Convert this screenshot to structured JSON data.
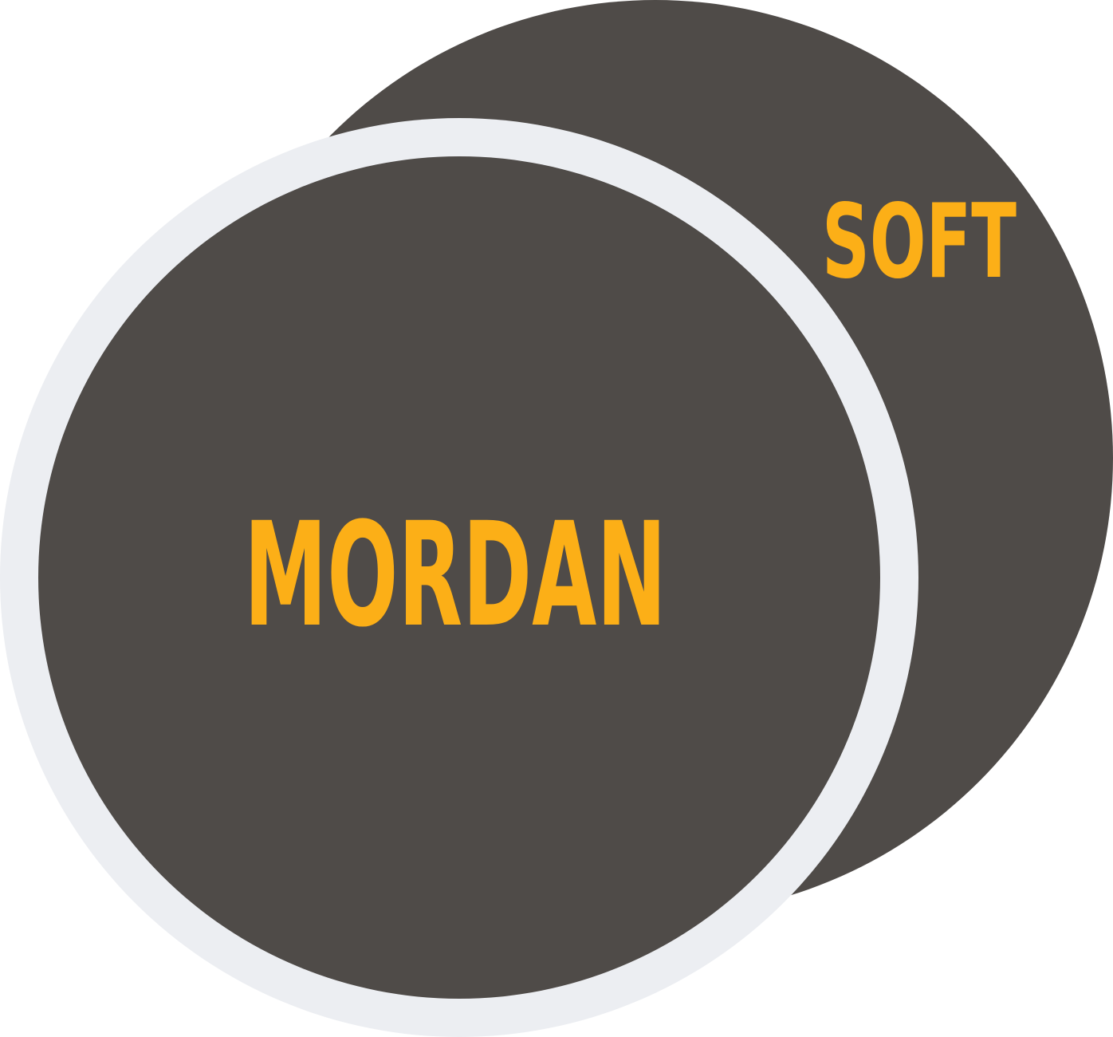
{
  "logo": {
    "primary_word": "MORDAN",
    "secondary_word": "SOFT"
  },
  "colors": {
    "circle_fill": "#4f4b48",
    "ring": "#eceef2",
    "text_accent": "#fcaf17",
    "background": "#ffffff"
  }
}
